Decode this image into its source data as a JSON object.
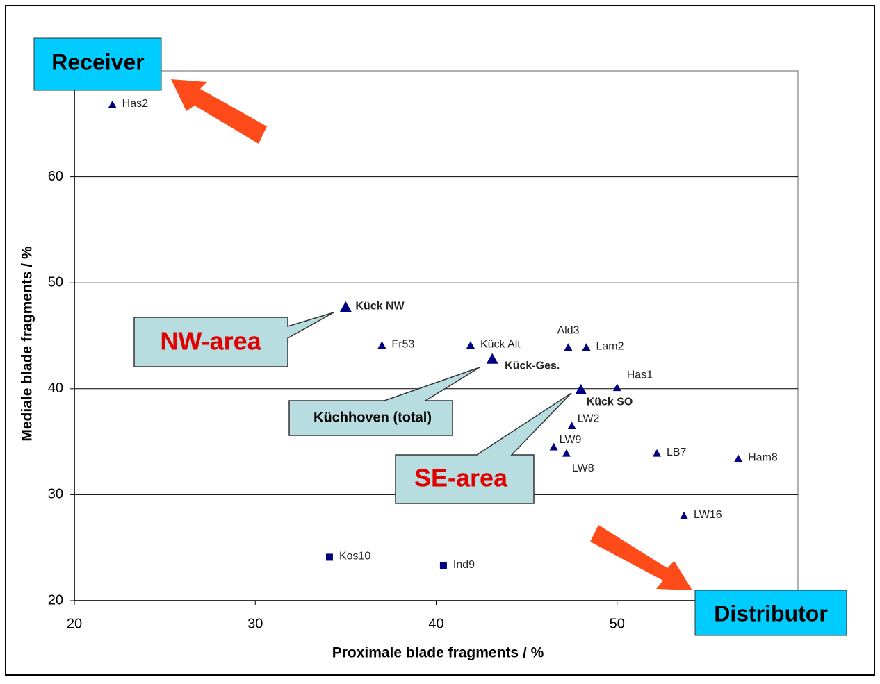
{
  "chart_data": {
    "type": "scatter",
    "x_label": "Proximale blade fragments / %",
    "y_label": "Mediale blade fragments / %",
    "xlim": [
      20,
      60
    ],
    "xticks": [
      20,
      30,
      40,
      50
    ],
    "ylim": [
      20,
      70
    ],
    "yticks": [
      20,
      30,
      40,
      50,
      60
    ],
    "grid": true,
    "series": [
      {
        "color": "#000080",
        "marker": "triangle",
        "labels": [
          "Has2",
          "Kück NW",
          "Fr53",
          "Kück Alt",
          "Kück-Ges.",
          "Ald3",
          "Lam2",
          "Has1",
          "Kück SO",
          "LW2",
          "LW9",
          "LW8",
          "LB7",
          "Ham8",
          "LW16"
        ],
        "bold": [
          false,
          true,
          false,
          false,
          true,
          false,
          false,
          false,
          true,
          false,
          false,
          false,
          false,
          false,
          false
        ],
        "x": [
          22.1,
          35.0,
          37.0,
          41.9,
          43.1,
          47.3,
          48.3,
          50.0,
          48.0,
          47.5,
          46.5,
          47.2,
          52.2,
          56.7,
          53.7
        ],
        "y": [
          66.8,
          47.7,
          44.1,
          44.1,
          42.8,
          43.9,
          43.9,
          40.1,
          39.9,
          36.5,
          34.5,
          33.9,
          33.9,
          33.4,
          28.0
        ]
      },
      {
        "color": "#000080",
        "marker": "square",
        "labels": [
          "Kos10",
          "Ind9"
        ],
        "bold": [
          false,
          false
        ],
        "x": [
          34.1,
          40.4
        ],
        "y": [
          24.1,
          23.3
        ]
      }
    ],
    "annotations": {
      "receiver": "Receiver",
      "distributor": "Distributor",
      "nw_area": "NW-area",
      "se_area": "SE-area",
      "total": "Küchhoven (total)"
    }
  }
}
